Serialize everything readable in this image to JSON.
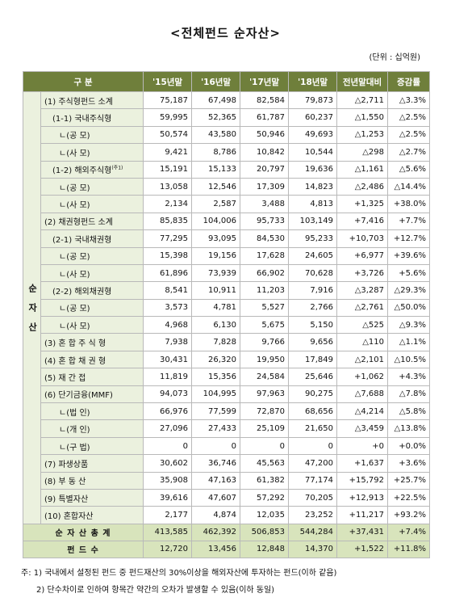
{
  "title": "<전체펀드 순자산>",
  "unit": "(단위 : 십억원)",
  "table": {
    "header": [
      "구 분",
      "'15년말",
      "'16년말",
      "'17년말",
      "'18년말",
      "전년말대비",
      "증감률"
    ],
    "side_label": "순 자 산",
    "row_marks": {
      "4": "(주1)"
    },
    "rows": [
      [
        "(1)  주식형펀드 소계",
        "75,187",
        "67,498",
        "82,584",
        "79,873",
        "△2,711",
        "△3.3%"
      ],
      [
        "(1-1) 국내주식형",
        "59,995",
        "52,365",
        "61,787",
        "60,237",
        "△1,550",
        "△2.5%"
      ],
      [
        "ㄴ(공 모)",
        "50,574",
        "43,580",
        "50,946",
        "49,693",
        "△1,253",
        "△2.5%"
      ],
      [
        "ㄴ(사 모)",
        "9,421",
        "8,786",
        "10,842",
        "10,544",
        "△298",
        "△2.7%"
      ],
      [
        "(1-2) 해외주식형",
        "15,191",
        "15,133",
        "20,797",
        "19,636",
        "△1,161",
        "△5.6%"
      ],
      [
        "ㄴ(공 모)",
        "13,058",
        "12,546",
        "17,309",
        "14,823",
        "△2,486",
        "△14.4%"
      ],
      [
        "ㄴ(사 모)",
        "2,134",
        "2,587",
        "3,488",
        "4,813",
        "+1,325",
        "+38.0%"
      ],
      [
        "(2) 채권형펀드 소계",
        "85,835",
        "104,006",
        "95,733",
        "103,149",
        "+7,416",
        "+7.7%"
      ],
      [
        "(2-1) 국내채권형",
        "77,295",
        "93,095",
        "84,530",
        "95,233",
        "+10,703",
        "+12.7%"
      ],
      [
        "ㄴ(공 모)",
        "15,398",
        "19,156",
        "17,628",
        "24,605",
        "+6,977",
        "+39.6%"
      ],
      [
        "ㄴ(사 모)",
        "61,896",
        "73,939",
        "66,902",
        "70,628",
        "+3,726",
        "+5.6%"
      ],
      [
        "(2-2) 해외채권형",
        "8,541",
        "10,911",
        "11,203",
        "7,916",
        "△3,287",
        "△29.3%"
      ],
      [
        "ㄴ(공 모)",
        "3,573",
        "4,781",
        "5,527",
        "2,766",
        "△2,761",
        "△50.0%"
      ],
      [
        "ㄴ(사 모)",
        "4,968",
        "6,130",
        "5,675",
        "5,150",
        "△525",
        "△9.3%"
      ],
      [
        "(3) 혼 합 주 식 형",
        "7,938",
        "7,828",
        "9,766",
        "9,656",
        "△110",
        "△1.1%"
      ],
      [
        "(4) 혼 합 채 권 형",
        "30,431",
        "26,320",
        "19,950",
        "17,849",
        "△2,101",
        "△10.5%"
      ],
      [
        "(5) 재 간 접",
        "11,819",
        "15,356",
        "24,584",
        "25,646",
        "+1,062",
        "+4.3%"
      ],
      [
        "(6) 단기금융(MMF)",
        "94,073",
        "104,995",
        "97,963",
        "90,275",
        "△7,688",
        "△7.8%"
      ],
      [
        "ㄴ(법 인)",
        "66,976",
        "77,599",
        "72,870",
        "68,656",
        "△4,214",
        "△5.8%"
      ],
      [
        "ㄴ(개 인)",
        "27,096",
        "27,433",
        "25,109",
        "21,650",
        "△3,459",
        "△13.8%"
      ],
      [
        "ㄴ(구 법)",
        "0",
        "0",
        "0",
        "0",
        "+0",
        "+0.0%"
      ],
      [
        "(7) 파생상품",
        "30,602",
        "36,746",
        "45,563",
        "47,200",
        "+1,637",
        "+3.6%"
      ],
      [
        "(8) 부 동 산",
        "35,908",
        "47,163",
        "61,382",
        "77,174",
        "+15,792",
        "+25.7%"
      ],
      [
        "(9) 특별자산",
        "39,616",
        "47,607",
        "57,292",
        "70,205",
        "+12,913",
        "+22.5%"
      ],
      [
        "(10) 혼합자산",
        "2,177",
        "4,874",
        "12,035",
        "23,252",
        "+11,217",
        "+93.2%"
      ]
    ],
    "totals": [
      [
        "순 자 산  총 계",
        "413,585",
        "462,392",
        "506,853",
        "544,284",
        "+37,431",
        "+7.4%"
      ],
      [
        "펀  드  수",
        "12,720",
        "13,456",
        "12,848",
        "14,370",
        "+1,522",
        "+11.8%"
      ]
    ]
  },
  "notes": [
    "주: 1) 국내에서 설정된 펀드 중 펀드재산의 30%이상을 해외자산에 투자하는 펀드(이하 같음)",
    "2) 단수차이로 인하여 항목간 약간의 오차가 발생할 수 있음(이하 동일)"
  ]
}
